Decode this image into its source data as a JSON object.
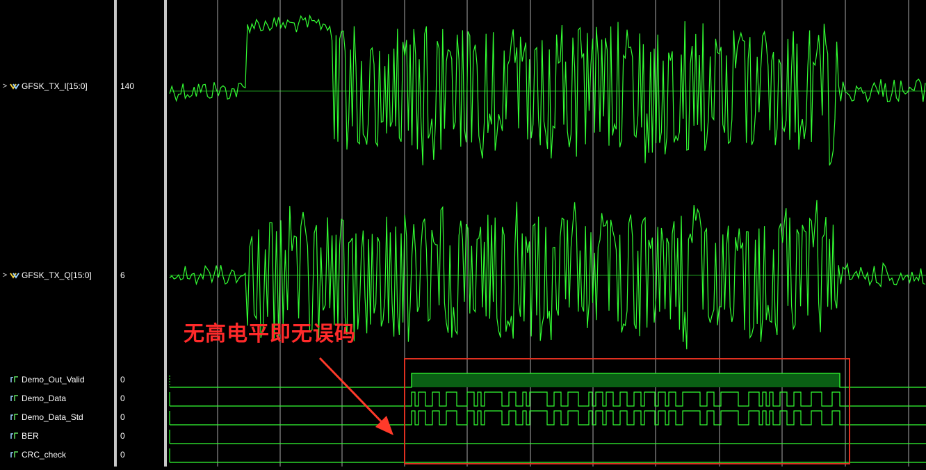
{
  "signals": [
    {
      "name": "GFSK_TX_I[15:0]",
      "value": "140",
      "bus": true,
      "kind": "analog",
      "icon": "bus-icon"
    },
    {
      "name": "GFSK_TX_Q[15:0]",
      "value": "6",
      "bus": true,
      "kind": "analog",
      "icon": "bus-icon"
    },
    {
      "name": "Demo_Out_Valid",
      "value": "0",
      "bus": false,
      "kind": "bit",
      "icon": "bit-icon"
    },
    {
      "name": "Demo_Data",
      "value": "0",
      "bus": false,
      "kind": "bit",
      "icon": "bit-icon"
    },
    {
      "name": "Demo_Data_Std",
      "value": "0",
      "bus": false,
      "kind": "bit",
      "icon": "bit-icon"
    },
    {
      "name": "BER",
      "value": "0",
      "bus": false,
      "kind": "bit",
      "icon": "bit-icon"
    },
    {
      "name": "CRC_check",
      "value": "0",
      "bus": false,
      "kind": "bit",
      "icon": "bit-icon"
    }
  ],
  "annotation": {
    "text": "无高电平即无误码"
  },
  "colors": {
    "waveform": "#33ff33",
    "grid": "#c8c8c8",
    "annotation": "#ff2a2a",
    "background": "#000000"
  }
}
